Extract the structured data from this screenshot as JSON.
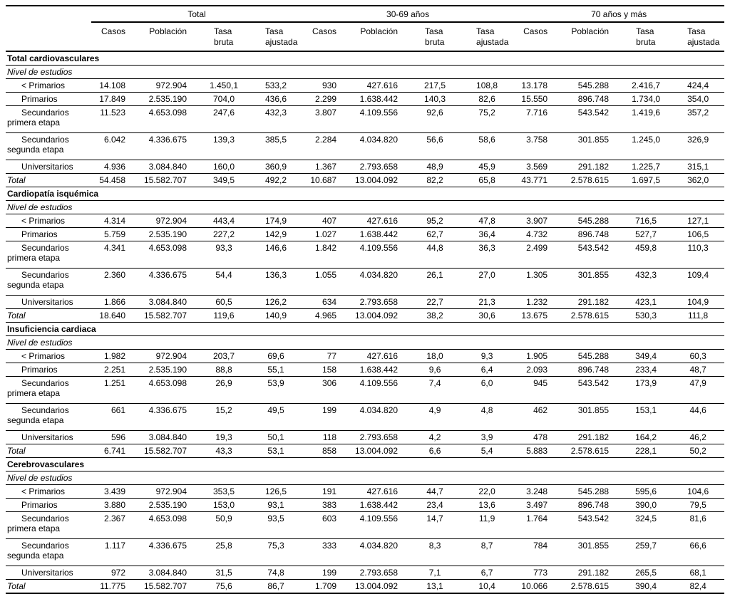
{
  "table": {
    "group_headers": [
      "Total",
      "30-69 años",
      "70 años y más"
    ],
    "column_headers": [
      "Casos",
      "Población",
      "Tasa bruta",
      "Tasa ajustada"
    ],
    "sections": [
      {
        "title": "Total cardiovasculares",
        "subtitle": "Nivel de estudios",
        "rows": [
          {
            "label": "< Primarios",
            "is_total": false,
            "values": [
              "14.108",
              "972.904",
              "1.450,1",
              "533,2",
              "930",
              "427.616",
              "217,5",
              "108,8",
              "13.178",
              "545.288",
              "2.416,7",
              "424,4"
            ]
          },
          {
            "label": "Primarios",
            "is_total": false,
            "values": [
              "17.849",
              "2.535.190",
              "704,0",
              "436,6",
              "2.299",
              "1.638.442",
              "140,3",
              "82,6",
              "15.550",
              "896.748",
              "1.734,0",
              "354,0"
            ]
          },
          {
            "label": "Secundarios\nprimera etapa",
            "is_total": false,
            "values": [
              "11.523",
              "4.653.098",
              "247,6",
              "432,3",
              "3.807",
              "4.109.556",
              "92,6",
              "75,2",
              "7.716",
              "543.542",
              "1.419,6",
              "357,2"
            ]
          },
          {
            "label": "Secundarios\nsegunda etapa",
            "is_total": false,
            "values": [
              "6.042",
              "4.336.675",
              "139,3",
              "385,5",
              "2.284",
              "4.034.820",
              "56,6",
              "58,6",
              "3.758",
              "301.855",
              "1.245,0",
              "326,9"
            ]
          },
          {
            "label": "Universitarios",
            "is_total": false,
            "values": [
              "4.936",
              "3.084.840",
              "160,0",
              "360,9",
              "1.367",
              "2.793.658",
              "48,9",
              "45,9",
              "3.569",
              "291.182",
              "1.225,7",
              "315,1"
            ]
          },
          {
            "label": "Total",
            "is_total": true,
            "values": [
              "54.458",
              "15.582.707",
              "349,5",
              "492,2",
              "10.687",
              "13.004.092",
              "82,2",
              "65,8",
              "43.771",
              "2.578.615",
              "1.697,5",
              "362,0"
            ]
          }
        ]
      },
      {
        "title": "Cardiopatía isquémica",
        "subtitle": "Nivel de estudios",
        "rows": [
          {
            "label": "< Primarios",
            "is_total": false,
            "values": [
              "4.314",
              "972.904",
              "443,4",
              "174,9",
              "407",
              "427.616",
              "95,2",
              "47,8",
              "3.907",
              "545.288",
              "716,5",
              "127,1"
            ]
          },
          {
            "label": "Primarios",
            "is_total": false,
            "values": [
              "5.759",
              "2.535.190",
              "227,2",
              "142,9",
              "1.027",
              "1.638.442",
              "62,7",
              "36,4",
              "4.732",
              "896.748",
              "527,7",
              "106,5"
            ]
          },
          {
            "label": "Secundarios\nprimera etapa",
            "is_total": false,
            "values": [
              "4.341",
              "4.653.098",
              "93,3",
              "146,6",
              "1.842",
              "4.109.556",
              "44,8",
              "36,3",
              "2.499",
              "543.542",
              "459,8",
              "110,3"
            ]
          },
          {
            "label": "Secundarios\nsegunda etapa",
            "is_total": false,
            "values": [
              "2.360",
              "4.336.675",
              "54,4",
              "136,3",
              "1.055",
              "4.034.820",
              "26,1",
              "27,0",
              "1.305",
              "301.855",
              "432,3",
              "109,4"
            ]
          },
          {
            "label": "Universitarios",
            "is_total": false,
            "values": [
              "1.866",
              "3.084.840",
              "60,5",
              "126,2",
              "634",
              "2.793.658",
              "22,7",
              "21,3",
              "1.232",
              "291.182",
              "423,1",
              "104,9"
            ]
          },
          {
            "label": "Total",
            "is_total": true,
            "values": [
              "18.640",
              "15.582.707",
              "119,6",
              "140,9",
              "4.965",
              "13.004.092",
              "38,2",
              "30,6",
              "13.675",
              "2.578.615",
              "530,3",
              "111,8"
            ]
          }
        ]
      },
      {
        "title": "Insuficiencia cardiaca",
        "subtitle": "Nivel de estudios",
        "rows": [
          {
            "label": "< Primarios",
            "is_total": false,
            "values": [
              "1.982",
              "972.904",
              "203,7",
              "69,6",
              "77",
              "427.616",
              "18,0",
              "9,3",
              "1.905",
              "545.288",
              "349,4",
              "60,3"
            ]
          },
          {
            "label": "Primarios",
            "is_total": false,
            "values": [
              "2.251",
              "2.535.190",
              "88,8",
              "55,1",
              "158",
              "1.638.442",
              "9,6",
              "6,4",
              "2.093",
              "896.748",
              "233,4",
              "48,7"
            ]
          },
          {
            "label": "Secundarios\nprimera etapa",
            "is_total": false,
            "values": [
              "1.251",
              "4.653.098",
              "26,9",
              "53,9",
              "306",
              "4.109.556",
              "7,4",
              "6,0",
              "945",
              "543.542",
              "173,9",
              "47,9"
            ]
          },
          {
            "label": "Secundarios\nsegunda etapa",
            "is_total": false,
            "values": [
              "661",
              "4.336.675",
              "15,2",
              "49,5",
              "199",
              "4.034.820",
              "4,9",
              "4,8",
              "462",
              "301.855",
              "153,1",
              "44,6"
            ]
          },
          {
            "label": "Universitarios",
            "is_total": false,
            "values": [
              "596",
              "3.084.840",
              "19,3",
              "50,1",
              "118",
              "2.793.658",
              "4,2",
              "3,9",
              "478",
              "291.182",
              "164,2",
              "46,2"
            ]
          },
          {
            "label": "Total",
            "is_total": true,
            "values": [
              "6.741",
              "15.582.707",
              "43,3",
              "53,1",
              "858",
              "13.004.092",
              "6,6",
              "5,4",
              "5.883",
              "2.578.615",
              "228,1",
              "50,2"
            ]
          }
        ]
      },
      {
        "title": "Cerebrovasculares",
        "subtitle": "Nivel de estudios",
        "rows": [
          {
            "label": "< Primarios",
            "is_total": false,
            "values": [
              "3.439",
              "972.904",
              "353,5",
              "126,5",
              "191",
              "427.616",
              "44,7",
              "22,0",
              "3.248",
              "545.288",
              "595,6",
              "104,6"
            ]
          },
          {
            "label": "Primarios",
            "is_total": false,
            "values": [
              "3.880",
              "2.535.190",
              "153,0",
              "93,1",
              "383",
              "1.638.442",
              "23,4",
              "13,6",
              "3.497",
              "896.748",
              "390,0",
              "79,5"
            ]
          },
          {
            "label": "Secundarios\nprimera etapa",
            "is_total": false,
            "values": [
              "2.367",
              "4.653.098",
              "50,9",
              "93,5",
              "603",
              "4.109.556",
              "14,7",
              "11,9",
              "1.764",
              "543.542",
              "324,5",
              "81,6"
            ]
          },
          {
            "label": "Secundarios\nsegunda etapa",
            "is_total": false,
            "values": [
              "1.117",
              "4.336.675",
              "25,8",
              "75,3",
              "333",
              "4.034.820",
              "8,3",
              "8,7",
              "784",
              "301.855",
              "259,7",
              "66,6"
            ]
          },
          {
            "label": "Universitarios",
            "is_total": false,
            "values": [
              "972",
              "3.084.840",
              "31,5",
              "74,8",
              "199",
              "2.793.658",
              "7,1",
              "6,7",
              "773",
              "291.182",
              "265,5",
              "68,1"
            ]
          },
          {
            "label": "Total",
            "is_total": true,
            "values": [
              "11.775",
              "15.582.707",
              "75,6",
              "86,7",
              "1.709",
              "13.004.092",
              "13,1",
              "10,4",
              "10.066",
              "2.578.615",
              "390,4",
              "82,4"
            ]
          }
        ]
      }
    ]
  }
}
